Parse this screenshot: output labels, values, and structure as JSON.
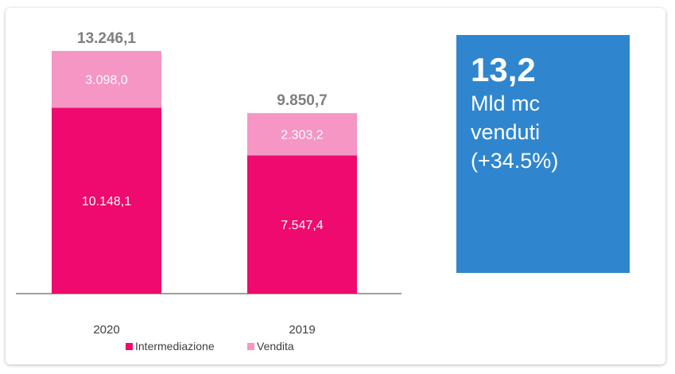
{
  "chart_data": {
    "type": "bar",
    "stacked": true,
    "categories": [
      "2020",
      "2019"
    ],
    "series": [
      {
        "name": "Intermediazione",
        "values": [
          10148.1,
          7547.4
        ],
        "labels": [
          "10.148,1",
          "7.547,4"
        ],
        "color": "#ee0a6e"
      },
      {
        "name": "Vendita",
        "values": [
          3098.0,
          2303.2
        ],
        "labels": [
          "3.098,0",
          "2.303,2"
        ],
        "color": "#f596c5"
      }
    ],
    "totals": [
      13246.1,
      9850.7
    ],
    "total_labels": [
      "13.246,1",
      "9.850,7"
    ],
    "total_label_color": "#7f7f7f",
    "legend_position": "bottom",
    "grid": false
  },
  "kpi": {
    "value": "13,2",
    "line1": "Mld mc",
    "line2": "venduti",
    "line3": "(+34.5%)",
    "background": "#2f86cf"
  }
}
